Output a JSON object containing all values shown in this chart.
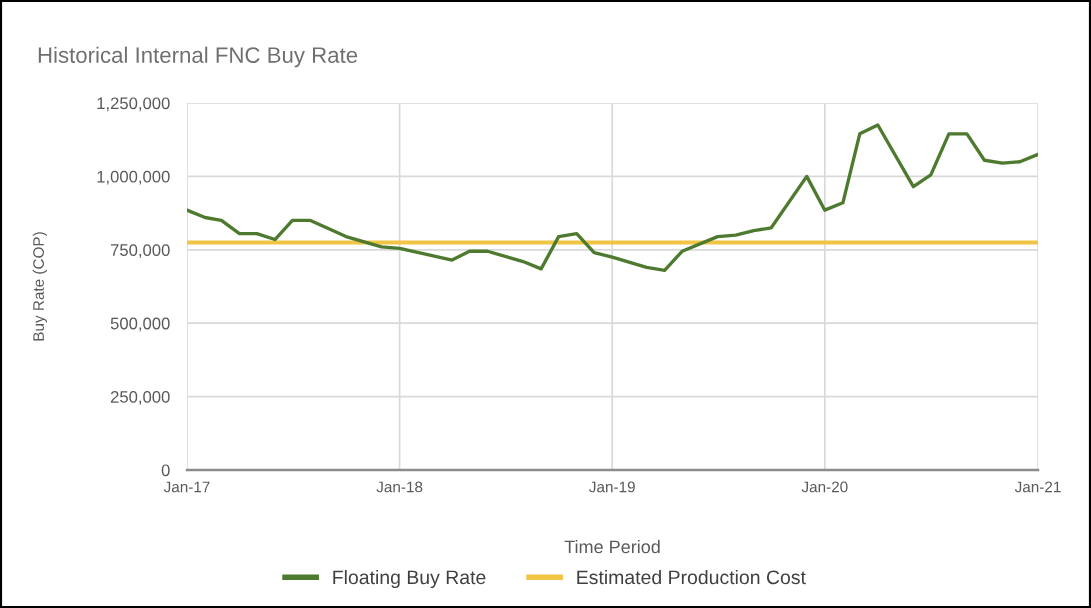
{
  "chart_data": {
    "type": "line",
    "title": "Historical Internal FNC Buy Rate",
    "xlabel": "Time Period",
    "ylabel": "Buy Rate (COP)",
    "series": [
      {
        "name": "Floating Buy Rate",
        "color": "#4e7a2f",
        "x": [
          "2017-01",
          "2017-02",
          "2017-03",
          "2017-04",
          "2017-05",
          "2017-06",
          "2017-07",
          "2017-08",
          "2017-10",
          "2017-12",
          "2018-01",
          "2018-04",
          "2018-05",
          "2018-06",
          "2018-08",
          "2018-09",
          "2018-10",
          "2018-11",
          "2018-12",
          "2019-01",
          "2019-03",
          "2019-04",
          "2019-05",
          "2019-07",
          "2019-08",
          "2019-09",
          "2019-10",
          "2019-12",
          "2020-01",
          "2020-02",
          "2020-03",
          "2020-04",
          "2020-06",
          "2020-07",
          "2020-08",
          "2020-09",
          "2020-10",
          "2020-11",
          "2020-12",
          "2021-01"
        ],
        "values": [
          885000,
          860000,
          850000,
          805000,
          805000,
          785000,
          850000,
          850000,
          795000,
          760000,
          755000,
          715000,
          745000,
          745000,
          710000,
          685000,
          795000,
          805000,
          740000,
          725000,
          690000,
          680000,
          745000,
          795000,
          800000,
          815000,
          825000,
          1000000,
          885000,
          910000,
          1145000,
          1175000,
          965000,
          1005000,
          1145000,
          1145000,
          1055000,
          1045000,
          1050000,
          1075000
        ]
      },
      {
        "name": "Estimated Production Cost",
        "color": "#f2c443",
        "x": [
          "2017-01",
          "2021-01"
        ],
        "values": [
          775000,
          775000
        ]
      }
    ],
    "xlim": [
      "2017-01",
      "2021-01"
    ],
    "xticks": [
      {
        "value": "2017-01",
        "label": "Jan-17"
      },
      {
        "value": "2018-01",
        "label": "Jan-18"
      },
      {
        "value": "2019-01",
        "label": "Jan-19"
      },
      {
        "value": "2020-01",
        "label": "Jan-20"
      },
      {
        "value": "2021-01",
        "label": "Jan-21"
      }
    ],
    "ylim": [
      0,
      1250000
    ],
    "yticks": [
      0,
      {
        "value": 250000,
        "label": "250,000"
      },
      {
        "value": 500000,
        "label": "500,000"
      },
      {
        "value": 750000,
        "label": "750,000"
      },
      {
        "value": 1000000,
        "label": "1,000,000"
      },
      {
        "value": 1250000,
        "label": "1,250,000"
      }
    ],
    "grid": true,
    "legend": "bottom",
    "line_style": "solid"
  }
}
